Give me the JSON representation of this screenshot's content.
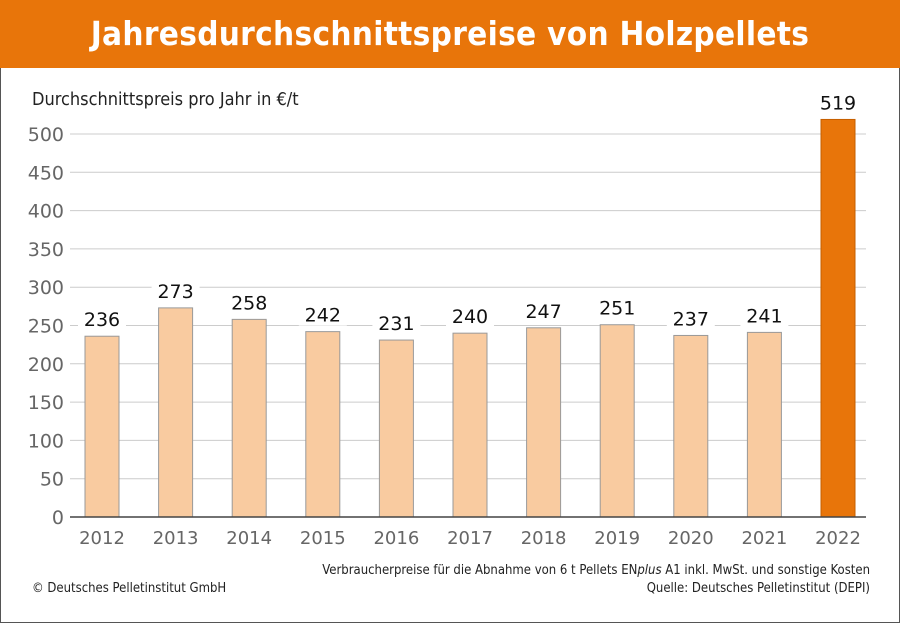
{
  "chart_data": {
    "type": "bar",
    "title": "Jahresdurchschnittspreise von Holzpellets",
    "ylabel": "Durchschnittspreis pro Jahr in €/t",
    "xlabel": "",
    "categories": [
      "2012",
      "2013",
      "2014",
      "2015",
      "2016",
      "2017",
      "2018",
      "2019",
      "2020",
      "2021",
      "2022"
    ],
    "values": [
      236,
      273,
      258,
      242,
      231,
      240,
      247,
      251,
      237,
      241,
      519
    ],
    "ylim": [
      0,
      500
    ],
    "yticks": [
      0,
      50,
      100,
      150,
      200,
      250,
      300,
      350,
      400,
      450,
      500
    ],
    "grid": true,
    "colors": {
      "default": "#F9CBA0",
      "highlight": "#E8750A",
      "title_bg": "#E8750A"
    }
  },
  "footnote": {
    "line1_before": "Verbraucherpreise für die Abnahme von 6 t Pellets EN",
    "line1_italic": "plus",
    "line1_after": " A1 inkl. MwSt. und sonstige Kosten",
    "line2": "Quelle: Deutsches Pelletinstitut (DEPI)"
  },
  "copyright": "© Deutsches Pelletinstitut GmbH"
}
